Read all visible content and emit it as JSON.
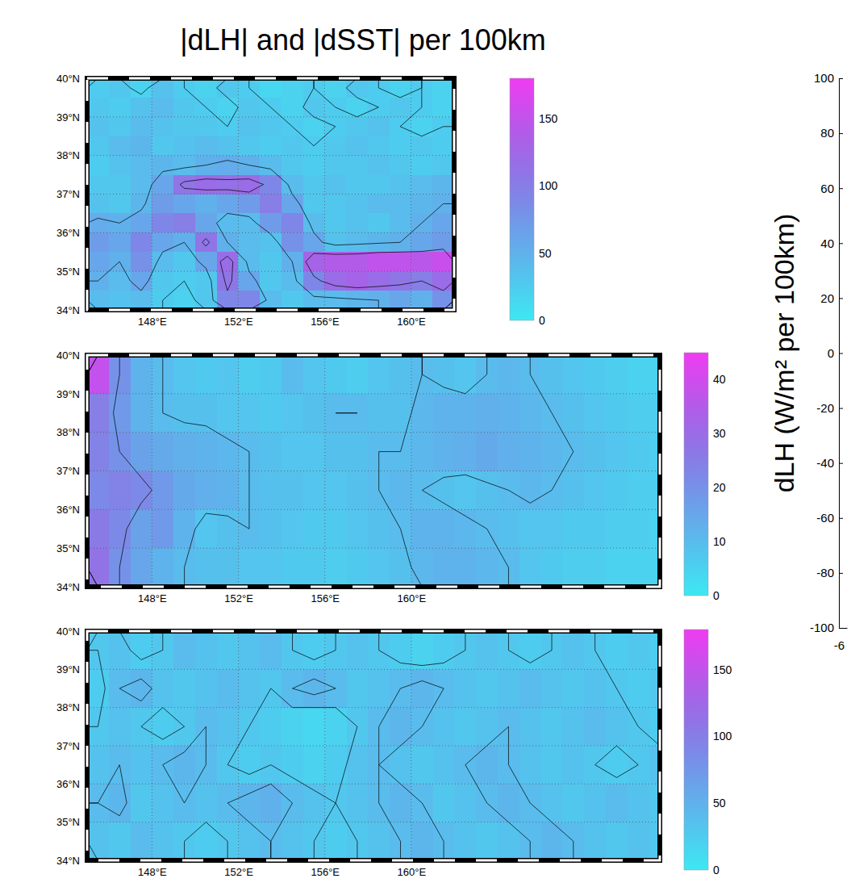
{
  "title": "|dLH| and |dSST| per 100km",
  "chart_data": [
    {
      "type": "heatmap",
      "xlim": [
        145,
        162
      ],
      "ylim": [
        34,
        40
      ],
      "xticks": [
        {
          "value": 148,
          "label": "148°E"
        },
        {
          "value": 152,
          "label": "152°E"
        },
        {
          "value": 156,
          "label": "156°E"
        },
        {
          "value": 160,
          "label": "160°E"
        }
      ],
      "yticks": [
        {
          "value": 34,
          "label": "34°N"
        },
        {
          "value": 35,
          "label": "35°N"
        },
        {
          "value": 36,
          "label": "36°N"
        },
        {
          "value": 37,
          "label": "37°N"
        },
        {
          "value": 38,
          "label": "38°N"
        },
        {
          "value": 39,
          "label": "39°N"
        },
        {
          "value": 40,
          "label": "40°N"
        }
      ],
      "grid": true,
      "x": [
        145.5,
        146.5,
        147.5,
        148.5,
        149.5,
        150.5,
        151.5,
        152.5,
        153.5,
        154.5,
        155.5,
        156.5,
        157.5,
        158.5,
        159.5,
        160.5,
        161.5
      ],
      "y": [
        39.75,
        39.25,
        38.75,
        38.25,
        37.75,
        37.25,
        36.75,
        36.25,
        35.75,
        35.25,
        34.75,
        34.25
      ],
      "values": [
        [
          25,
          30,
          20,
          35,
          25,
          20,
          30,
          25,
          15,
          20,
          25,
          20,
          30,
          25,
          20,
          25,
          20
        ],
        [
          30,
          25,
          35,
          40,
          30,
          25,
          20,
          30,
          25,
          20,
          30,
          25,
          20,
          25,
          30,
          25,
          20
        ],
        [
          35,
          30,
          40,
          35,
          30,
          30,
          25,
          35,
          30,
          25,
          20,
          25,
          30,
          35,
          25,
          20,
          25
        ],
        [
          30,
          40,
          45,
          30,
          35,
          40,
          35,
          30,
          25,
          30,
          25,
          30,
          35,
          30,
          25,
          30,
          25
        ],
        [
          25,
          35,
          40,
          45,
          40,
          50,
          55,
          50,
          40,
          30,
          25,
          30,
          30,
          35,
          30,
          25,
          30
        ],
        [
          30,
          30,
          40,
          60,
          110,
          120,
          115,
          120,
          90,
          40,
          30,
          35,
          30,
          30,
          35,
          40,
          45
        ],
        [
          35,
          30,
          45,
          70,
          60,
          50,
          60,
          70,
          100,
          60,
          30,
          30,
          35,
          40,
          40,
          45,
          50
        ],
        [
          55,
          50,
          60,
          90,
          100,
          60,
          40,
          40,
          70,
          90,
          40,
          30,
          35,
          30,
          40,
          50,
          60
        ],
        [
          70,
          60,
          90,
          60,
          50,
          110,
          50,
          40,
          35,
          80,
          60,
          35,
          40,
          45,
          50,
          60,
          70
        ],
        [
          60,
          50,
          80,
          40,
          30,
          60,
          120,
          40,
          30,
          50,
          130,
          140,
          140,
          150,
          150,
          145,
          155
        ],
        [
          50,
          40,
          60,
          30,
          25,
          30,
          110,
          60,
          30,
          40,
          90,
          120,
          130,
          120,
          110,
          100,
          120
        ],
        [
          40,
          35,
          40,
          25,
          20,
          30,
          90,
          90,
          40,
          30,
          40,
          40,
          45,
          50,
          60,
          50,
          80
        ]
      ],
      "contour_levels": [
        25,
        50,
        100
      ],
      "colorbar": {
        "range": [
          0,
          180
        ],
        "ticks": [
          0,
          50,
          100,
          150
        ]
      }
    },
    {
      "type": "heatmap",
      "xlim": [
        145,
        171.5
      ],
      "ylim": [
        34,
        40
      ],
      "xticks": [
        {
          "value": 148,
          "label": "148°E"
        },
        {
          "value": 152,
          "label": "152°E"
        },
        {
          "value": 156,
          "label": "156°E"
        },
        {
          "value": 160,
          "label": "160°E"
        }
      ],
      "yticks": [
        {
          "value": 34,
          "label": "34°N"
        },
        {
          "value": 35,
          "label": "35°N"
        },
        {
          "value": 36,
          "label": "36°N"
        },
        {
          "value": 37,
          "label": "37°N"
        },
        {
          "value": 38,
          "label": "38°N"
        },
        {
          "value": 39,
          "label": "39°N"
        },
        {
          "value": 40,
          "label": "40°N"
        }
      ],
      "grid": true,
      "x": [
        145.5,
        146.5,
        147.5,
        148.5,
        149.5,
        150.5,
        151.5,
        152.5,
        153.5,
        154.5,
        155.5,
        156.5,
        157.5,
        158.5,
        159.5,
        160.5,
        161.5,
        162.5,
        163.5,
        164.5,
        165.5,
        166.5,
        167.5,
        168.5,
        169.5,
        170.5,
        171.5
      ],
      "y": [
        39.5,
        38.5,
        37.5,
        36.5,
        35.5,
        34.5
      ],
      "values": [
        [
          38,
          20,
          12,
          10,
          8,
          7,
          8,
          6,
          7,
          10,
          8,
          7,
          6,
          8,
          9,
          10,
          9,
          8,
          10,
          11,
          10,
          9,
          8,
          7,
          6,
          5,
          5
        ],
        [
          25,
          18,
          12,
          10,
          9,
          9,
          8,
          8,
          7,
          8,
          9,
          10,
          10,
          9,
          9,
          11,
          12,
          12,
          13,
          12,
          11,
          10,
          9,
          8,
          7,
          6,
          6
        ],
        [
          24,
          20,
          16,
          14,
          13,
          12,
          11,
          10,
          9,
          8,
          8,
          9,
          9,
          10,
          10,
          11,
          12,
          13,
          14,
          13,
          12,
          11,
          10,
          9,
          8,
          7,
          6
        ],
        [
          22,
          24,
          22,
          18,
          14,
          13,
          12,
          10,
          9,
          9,
          8,
          8,
          9,
          10,
          11,
          10,
          9,
          8,
          9,
          10,
          11,
          10,
          9,
          8,
          7,
          6,
          6
        ],
        [
          26,
          22,
          16,
          18,
          12,
          8,
          9,
          10,
          9,
          8,
          7,
          7,
          8,
          9,
          10,
          12,
          12,
          11,
          10,
          9,
          8,
          8,
          7,
          7,
          6,
          6,
          5
        ],
        [
          28,
          20,
          15,
          12,
          10,
          9,
          9,
          8,
          8,
          7,
          7,
          6,
          7,
          8,
          9,
          11,
          12,
          12,
          11,
          10,
          8,
          7,
          6,
          6,
          5,
          5,
          5
        ]
      ],
      "contour_levels": [
        10,
        20
      ],
      "colorbar": {
        "range": [
          0,
          45
        ],
        "ticks": [
          0,
          10,
          20,
          30,
          40
        ]
      }
    },
    {
      "type": "heatmap",
      "xlim": [
        145,
        171.5
      ],
      "ylim": [
        34,
        40
      ],
      "xticks": [
        {
          "value": 148,
          "label": "148°E"
        },
        {
          "value": 152,
          "label": "152°E"
        },
        {
          "value": 156,
          "label": "156°E"
        },
        {
          "value": 160,
          "label": "160°E"
        }
      ],
      "yticks": [
        {
          "value": 34,
          "label": "34°N"
        },
        {
          "value": 35,
          "label": "35°N"
        },
        {
          "value": 36,
          "label": "36°N"
        },
        {
          "value": 37,
          "label": "37°N"
        },
        {
          "value": 38,
          "label": "38°N"
        },
        {
          "value": 39,
          "label": "39°N"
        },
        {
          "value": 40,
          "label": "40°N"
        }
      ],
      "grid": true,
      "x": [
        145.5,
        146.5,
        147.5,
        148.5,
        149.5,
        150.5,
        151.5,
        152.5,
        153.5,
        154.5,
        155.5,
        156.5,
        157.5,
        158.5,
        159.5,
        160.5,
        161.5,
        162.5,
        163.5,
        164.5,
        165.5,
        166.5,
        167.5,
        168.5,
        169.5,
        170.5,
        171.5
      ],
      "y": [
        39.5,
        38.5,
        37.5,
        36.5,
        35.5,
        34.5
      ],
      "values": [
        [
          30,
          35,
          25,
          30,
          40,
          35,
          30,
          35,
          40,
          30,
          25,
          30,
          35,
          30,
          25,
          20,
          25,
          30,
          35,
          30,
          25,
          30,
          35,
          30,
          25,
          30,
          25
        ],
        [
          25,
          40,
          45,
          35,
          30,
          35,
          40,
          35,
          30,
          40,
          45,
          40,
          30,
          35,
          40,
          45,
          40,
          35,
          30,
          35,
          40,
          35,
          30,
          35,
          30,
          25,
          30
        ],
        [
          30,
          35,
          30,
          25,
          30,
          40,
          35,
          30,
          25,
          20,
          15,
          20,
          30,
          40,
          45,
          40,
          35,
          30,
          35,
          40,
          35,
          30,
          35,
          40,
          35,
          30,
          25
        ],
        [
          35,
          40,
          35,
          40,
          45,
          40,
          30,
          25,
          30,
          25,
          20,
          25,
          35,
          40,
          35,
          30,
          35,
          40,
          45,
          40,
          35,
          30,
          35,
          30,
          25,
          30,
          35
        ],
        [
          40,
          45,
          30,
          35,
          40,
          35,
          40,
          45,
          50,
          40,
          35,
          30,
          35,
          40,
          45,
          40,
          30,
          35,
          40,
          45,
          40,
          35,
          30,
          35,
          40,
          35,
          30
        ],
        [
          35,
          30,
          40,
          35,
          30,
          25,
          30,
          35,
          40,
          35,
          30,
          25,
          30,
          35,
          40,
          45,
          40,
          35,
          30,
          35,
          40,
          45,
          40,
          35,
          30,
          35,
          30
        ]
      ],
      "contour_levels": [
        30,
        40
      ],
      "colorbar": {
        "range": [
          0,
          180
        ],
        "ticks": [
          0,
          50,
          100,
          150
        ]
      }
    },
    {
      "type": "scatter",
      "ylabel": "dLH (W/m² per 100km)",
      "xlim": [
        -6,
        6
      ],
      "xticks": [
        -6
      ],
      "ylim": [
        -100,
        100
      ],
      "yticks": [
        -100,
        -80,
        -60,
        -40,
        -20,
        0,
        20,
        40,
        60,
        80,
        100
      ]
    }
  ]
}
